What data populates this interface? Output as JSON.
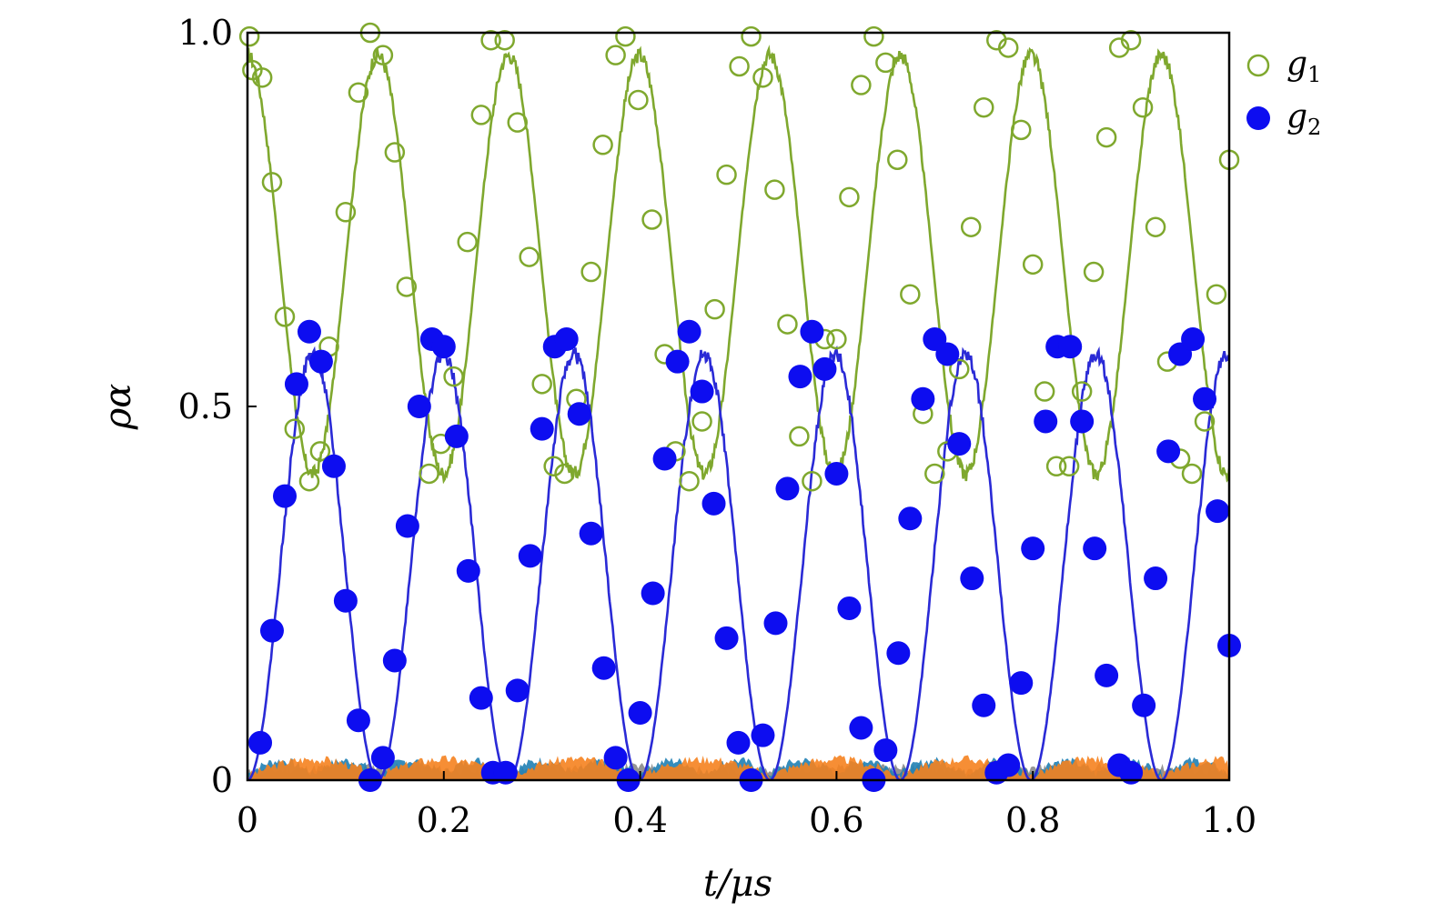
{
  "chart_data": {
    "type": "scatter",
    "xlabel": "t/μs",
    "ylabel": "ρα",
    "xlim": [
      0,
      1.0
    ],
    "ylim": [
      0,
      1.0
    ],
    "x_ticks": [
      "0",
      "0.2",
      "0.4",
      "0.6",
      "0.8",
      "1.0"
    ],
    "y_ticks": [
      "0",
      "0.5",
      "1.0"
    ],
    "grid": false,
    "legend_position": "right",
    "colors": {
      "g1": "#7fa82e",
      "g2": "#0d0df0",
      "g2_line": "#2a2ad6",
      "bg_orange": "#f5821f",
      "bg_teal": "#1f7fb4",
      "bg_gray": "#8a8a8a"
    },
    "lines": [
      {
        "name": "g1_line",
        "model": "cos",
        "mean": 0.69,
        "amplitude": 0.28,
        "period": 0.133,
        "phase": 0
      },
      {
        "name": "g2_line",
        "model": "sin2",
        "amplitude": 0.57,
        "period": 0.133,
        "phase": 0
      }
    ],
    "series": [
      {
        "name": "g1",
        "marker": "open-circle",
        "points": [
          [
            0.002,
            0.995
          ],
          [
            0.005,
            0.95
          ],
          [
            0.015,
            0.94
          ],
          [
            0.025,
            0.8
          ],
          [
            0.038,
            0.62
          ],
          [
            0.048,
            0.47
          ],
          [
            0.063,
            0.4
          ],
          [
            0.074,
            0.44
          ],
          [
            0.083,
            0.58
          ],
          [
            0.1,
            0.76
          ],
          [
            0.113,
            0.92
          ],
          [
            0.125,
            1.0
          ],
          [
            0.138,
            0.97
          ],
          [
            0.15,
            0.84
          ],
          [
            0.162,
            0.66
          ],
          [
            0.176,
            0.5
          ],
          [
            0.185,
            0.41
          ],
          [
            0.197,
            0.45
          ],
          [
            0.21,
            0.54
          ],
          [
            0.224,
            0.72
          ],
          [
            0.238,
            0.89
          ],
          [
            0.248,
            0.99
          ],
          [
            0.262,
            0.99
          ],
          [
            0.275,
            0.88
          ],
          [
            0.287,
            0.7
          ],
          [
            0.3,
            0.53
          ],
          [
            0.312,
            0.42
          ],
          [
            0.323,
            0.41
          ],
          [
            0.335,
            0.51
          ],
          [
            0.35,
            0.68
          ],
          [
            0.362,
            0.85
          ],
          [
            0.375,
            0.97
          ],
          [
            0.385,
            0.995
          ],
          [
            0.398,
            0.91
          ],
          [
            0.412,
            0.75
          ],
          [
            0.425,
            0.57
          ],
          [
            0.436,
            0.44
          ],
          [
            0.45,
            0.4
          ],
          [
            0.463,
            0.48
          ],
          [
            0.476,
            0.63
          ],
          [
            0.488,
            0.81
          ],
          [
            0.501,
            0.955
          ],
          [
            0.513,
            0.995
          ],
          [
            0.525,
            0.94
          ],
          [
            0.537,
            0.79
          ],
          [
            0.55,
            0.61
          ],
          [
            0.562,
            0.46
          ],
          [
            0.575,
            0.4
          ],
          [
            0.588,
            0.59
          ],
          [
            0.6,
            0.59
          ],
          [
            0.613,
            0.78
          ],
          [
            0.625,
            0.93
          ],
          [
            0.638,
            0.995
          ],
          [
            0.65,
            0.96
          ],
          [
            0.662,
            0.83
          ],
          [
            0.675,
            0.65
          ],
          [
            0.688,
            0.49
          ],
          [
            0.7,
            0.41
          ],
          [
            0.713,
            0.44
          ],
          [
            0.725,
            0.55
          ],
          [
            0.737,
            0.74
          ],
          [
            0.75,
            0.9
          ],
          [
            0.763,
            0.99
          ],
          [
            0.775,
            0.98
          ],
          [
            0.788,
            0.87
          ],
          [
            0.8,
            0.69
          ],
          [
            0.812,
            0.52
          ],
          [
            0.824,
            0.42
          ],
          [
            0.837,
            0.42
          ],
          [
            0.85,
            0.52
          ],
          [
            0.862,
            0.68
          ],
          [
            0.875,
            0.86
          ],
          [
            0.888,
            0.98
          ],
          [
            0.9,
            0.99
          ],
          [
            0.912,
            0.9
          ],
          [
            0.925,
            0.74
          ],
          [
            0.937,
            0.56
          ],
          [
            0.95,
            0.43
          ],
          [
            0.962,
            0.41
          ],
          [
            0.975,
            0.48
          ],
          [
            0.987,
            0.65
          ],
          [
            1.0,
            0.83
          ]
        ]
      },
      {
        "name": "g2",
        "marker": "filled-circle",
        "points": [
          [
            0.013,
            0.05
          ],
          [
            0.025,
            0.2
          ],
          [
            0.038,
            0.38
          ],
          [
            0.05,
            0.53
          ],
          [
            0.063,
            0.6
          ],
          [
            0.075,
            0.56
          ],
          [
            0.088,
            0.42
          ],
          [
            0.1,
            0.24
          ],
          [
            0.113,
            0.08
          ],
          [
            0.125,
            0.0
          ],
          [
            0.138,
            0.03
          ],
          [
            0.15,
            0.16
          ],
          [
            0.163,
            0.34
          ],
          [
            0.175,
            0.5
          ],
          [
            0.188,
            0.59
          ],
          [
            0.2,
            0.58
          ],
          [
            0.213,
            0.46
          ],
          [
            0.225,
            0.28
          ],
          [
            0.238,
            0.11
          ],
          [
            0.25,
            0.01
          ],
          [
            0.263,
            0.01
          ],
          [
            0.275,
            0.12
          ],
          [
            0.288,
            0.3
          ],
          [
            0.3,
            0.47
          ],
          [
            0.313,
            0.58
          ],
          [
            0.325,
            0.59
          ],
          [
            0.338,
            0.49
          ],
          [
            0.35,
            0.33
          ],
          [
            0.363,
            0.15
          ],
          [
            0.375,
            0.03
          ],
          [
            0.388,
            0.0
          ],
          [
            0.4,
            0.09
          ],
          [
            0.413,
            0.25
          ],
          [
            0.425,
            0.43
          ],
          [
            0.438,
            0.56
          ],
          [
            0.45,
            0.6
          ],
          [
            0.463,
            0.52
          ],
          [
            0.475,
            0.37
          ],
          [
            0.488,
            0.19
          ],
          [
            0.5,
            0.05
          ],
          [
            0.513,
            0.0
          ],
          [
            0.525,
            0.06
          ],
          [
            0.538,
            0.21
          ],
          [
            0.55,
            0.39
          ],
          [
            0.563,
            0.54
          ],
          [
            0.575,
            0.6
          ],
          [
            0.588,
            0.55
          ],
          [
            0.6,
            0.41
          ],
          [
            0.613,
            0.23
          ],
          [
            0.625,
            0.07
          ],
          [
            0.638,
            0.0
          ],
          [
            0.65,
            0.04
          ],
          [
            0.663,
            0.17
          ],
          [
            0.675,
            0.35
          ],
          [
            0.688,
            0.51
          ],
          [
            0.7,
            0.59
          ],
          [
            0.713,
            0.57
          ],
          [
            0.725,
            0.45
          ],
          [
            0.738,
            0.27
          ],
          [
            0.75,
            0.1
          ],
          [
            0.763,
            0.01
          ],
          [
            0.775,
            0.02
          ],
          [
            0.788,
            0.13
          ],
          [
            0.8,
            0.31
          ],
          [
            0.813,
            0.48
          ],
          [
            0.825,
            0.58
          ],
          [
            0.838,
            0.58
          ],
          [
            0.85,
            0.48
          ],
          [
            0.863,
            0.31
          ],
          [
            0.875,
            0.14
          ],
          [
            0.888,
            0.02
          ],
          [
            0.9,
            0.01
          ],
          [
            0.913,
            0.1
          ],
          [
            0.925,
            0.27
          ],
          [
            0.938,
            0.44
          ],
          [
            0.95,
            0.57
          ],
          [
            0.963,
            0.59
          ],
          [
            0.975,
            0.51
          ],
          [
            0.988,
            0.36
          ],
          [
            1.0,
            0.18
          ]
        ]
      }
    ],
    "legend": [
      {
        "marker": "open-circle",
        "label": "g",
        "sub": "1"
      },
      {
        "marker": "filled-circle",
        "label": "g",
        "sub": "2"
      }
    ]
  }
}
